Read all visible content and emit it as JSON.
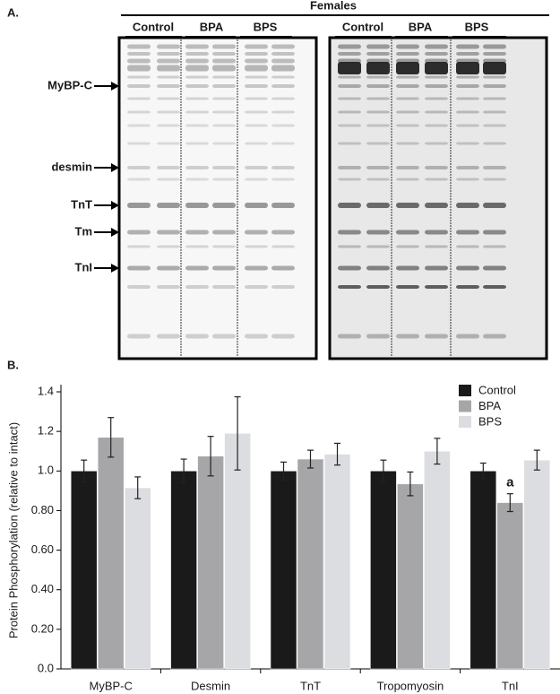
{
  "panel_a": {
    "label": "A.",
    "title": "Females",
    "gels": [
      {
        "groups": [
          "Control",
          "BPA",
          "BPS"
        ]
      },
      {
        "groups": [
          "Control",
          "BPA",
          "BPS"
        ]
      }
    ],
    "bands": [
      "MyBP-C",
      "desmin",
      "TnT",
      "Tm",
      "TnI"
    ]
  },
  "panel_b": {
    "label": "B."
  },
  "chart_data": {
    "type": "bar",
    "y_label": "Protein Phosphorylation (relative to intact)",
    "categories": [
      "MyBP-C",
      "Desmin",
      "TnT",
      "Tropomyosin",
      "TnI"
    ],
    "series": [
      {
        "name": "Control",
        "color": "#1a1a1a",
        "values": [
          1.0,
          1.0,
          1.0,
          1.0,
          1.0
        ],
        "errors": [
          0.055,
          0.06,
          0.045,
          0.055,
          0.04
        ]
      },
      {
        "name": "BPA",
        "color": "#a6a6a9",
        "values": [
          1.17,
          1.075,
          1.06,
          0.935,
          0.84
        ],
        "errors": [
          0.1,
          0.1,
          0.045,
          0.06,
          0.045
        ]
      },
      {
        "name": "BPS",
        "color": "#dcdde0",
        "values": [
          0.915,
          1.19,
          1.085,
          1.1,
          1.055
        ],
        "errors": [
          0.055,
          0.185,
          0.055,
          0.065,
          0.05
        ]
      }
    ],
    "annotations": [
      {
        "category": "TnI",
        "series": "BPA",
        "text": "a"
      }
    ],
    "ylim": [
      0,
      1.4
    ],
    "yticks": [
      {
        "value": 0,
        "label": "0.0"
      },
      {
        "value": 0.2,
        "label": "0.20"
      },
      {
        "value": 0.4,
        "label": "0.40"
      },
      {
        "value": 0.6,
        "label": "0.60"
      },
      {
        "value": 0.8,
        "label": "0.80"
      },
      {
        "value": 1.0,
        "label": "1.0"
      },
      1.2,
      1.4
    ],
    "legend": "top-right",
    "grid": false
  }
}
